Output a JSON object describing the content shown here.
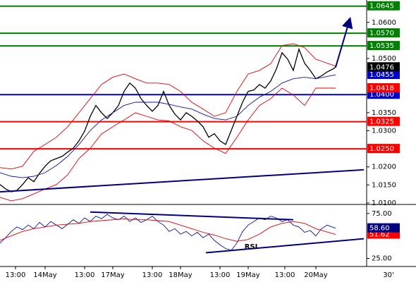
{
  "chart_data": [
    {
      "type": "line",
      "xlim": [
        0,
        130
      ],
      "ylim": [
        1.0096,
        1.0662
      ],
      "yticks": [
        {
          "value": 1.01,
          "label": "1.0100"
        },
        {
          "value": 1.015,
          "label": "1.0150"
        },
        {
          "value": 1.02,
          "label": "1.0200"
        },
        {
          "value": 1.03,
          "label": "1.0300"
        },
        {
          "value": 1.035,
          "label": "1.0350"
        },
        {
          "value": 1.05,
          "label": "1.0500"
        },
        {
          "value": 1.06,
          "label": "1.0600"
        }
      ],
      "series": [
        {
          "name": "Close",
          "color": "#000000",
          "width": 1.3,
          "x": [
            0,
            2,
            4,
            6,
            8,
            10,
            12,
            14,
            16,
            18,
            20,
            22,
            24,
            26,
            28,
            30,
            32,
            34,
            36,
            38,
            40,
            42,
            44,
            46,
            48,
            50,
            52,
            54,
            56,
            58,
            60,
            62,
            64,
            66,
            68,
            70,
            72,
            74,
            76,
            78,
            80,
            82,
            84,
            86,
            88,
            90,
            92,
            94,
            96,
            98,
            100,
            102,
            104,
            106,
            108,
            110,
            112,
            114,
            116,
            118,
            119
          ],
          "values": [
            1.0151,
            1.0139,
            1.0131,
            1.0135,
            1.0151,
            1.017,
            1.0159,
            1.0182,
            1.0202,
            1.0217,
            1.0223,
            1.0229,
            1.0241,
            1.0252,
            1.0272,
            1.0299,
            1.034,
            1.037,
            1.035,
            1.0334,
            1.035,
            1.037,
            1.0409,
            1.0432,
            1.0418,
            1.0389,
            1.037,
            1.0354,
            1.037,
            1.0409,
            1.037,
            1.0346,
            1.033,
            1.035,
            1.034,
            1.0327,
            1.0311,
            1.0282,
            1.0292,
            1.0272,
            1.0262,
            1.0301,
            1.034,
            1.0379,
            1.0409,
            1.0413,
            1.0428,
            1.0418,
            1.0438,
            1.0471,
            1.0516,
            1.0498,
            1.0467,
            1.0526,
            1.0487,
            1.0467,
            1.0444,
            1.0452,
            1.0463,
            1.0471,
            1.0476
          ]
        },
        {
          "name": "Upper band",
          "color": "#e00000",
          "width": 0.9,
          "x": [
            0,
            4,
            8,
            12,
            16,
            20,
            24,
            28,
            32,
            36,
            40,
            44,
            48,
            52,
            56,
            60,
            64,
            68,
            72,
            76,
            80,
            84,
            88,
            92,
            96,
            100,
            104,
            108,
            112,
            119
          ],
          "values": [
            1.0198,
            1.0194,
            1.0202,
            1.0243,
            1.0262,
            1.0282,
            1.0311,
            1.035,
            1.0389,
            1.0428,
            1.0448,
            1.0457,
            1.0444,
            1.0432,
            1.0432,
            1.0428,
            1.0409,
            1.0379,
            1.036,
            1.034,
            1.035,
            1.0409,
            1.0457,
            1.0467,
            1.0486,
            1.0536,
            1.0541,
            1.053,
            1.0498,
            1.0479
          ]
        },
        {
          "name": "Lower band",
          "color": "#e00000",
          "width": 0.9,
          "x": [
            0,
            4,
            8,
            12,
            16,
            20,
            24,
            28,
            32,
            36,
            40,
            44,
            48,
            52,
            56,
            60,
            64,
            68,
            72,
            76,
            80,
            84,
            88,
            92,
            96,
            100,
            104,
            108,
            112,
            119
          ],
          "values": [
            1.0116,
            1.0106,
            1.0112,
            1.0125,
            1.0139,
            1.0151,
            1.0178,
            1.0223,
            1.0252,
            1.0291,
            1.0311,
            1.033,
            1.035,
            1.034,
            1.033,
            1.0327,
            1.0311,
            1.0301,
            1.0272,
            1.0252,
            1.0237,
            1.0282,
            1.033,
            1.037,
            1.0389,
            1.0418,
            1.0399,
            1.037,
            1.0418,
            1.0418
          ]
        },
        {
          "name": "Moving average",
          "color": "#1010a0",
          "width": 0.9,
          "x": [
            0,
            4,
            8,
            12,
            16,
            20,
            24,
            28,
            32,
            36,
            40,
            44,
            48,
            52,
            56,
            60,
            64,
            68,
            72,
            76,
            80,
            84,
            88,
            92,
            96,
            100,
            104,
            108,
            112,
            119
          ],
          "values": [
            1.0184,
            1.0174,
            1.017,
            1.0174,
            1.0184,
            1.0204,
            1.0229,
            1.0262,
            1.0301,
            1.033,
            1.035,
            1.037,
            1.0379,
            1.0379,
            1.0379,
            1.0373,
            1.0366,
            1.036,
            1.0346,
            1.0334,
            1.033,
            1.034,
            1.037,
            1.0393,
            1.0409,
            1.0432,
            1.0444,
            1.0448,
            1.0444,
            1.0455
          ]
        }
      ],
      "levels": [
        {
          "value": 1.0645,
          "label": "1.0645",
          "color": "#008000"
        },
        {
          "value": 1.057,
          "label": "1.0570",
          "color": "#008000"
        },
        {
          "value": 1.0535,
          "label": "1.0535",
          "color": "#008000"
        },
        {
          "value": 1.04,
          "label": "1.0400",
          "color": "#0000cc"
        },
        {
          "value": 1.0325,
          "label": "1.0325",
          "color": "#ff0000"
        },
        {
          "value": 1.025,
          "label": "1.0250",
          "color": "#ff0000"
        }
      ],
      "price_labels": [
        {
          "value": 1.0418,
          "label": "1.0418",
          "color": "#ff0000"
        },
        {
          "value": 1.0455,
          "label": "1.0455",
          "color": "#0000cc"
        },
        {
          "value": 1.0476,
          "label": "1.0476",
          "color": "#000000"
        }
      ],
      "trendlines": [
        {
          "x": [
            0,
            129
          ],
          "y": [
            1.0131,
            1.0192
          ],
          "color": "#000080"
        },
        {
          "x": [
            119,
            124
          ],
          "y": [
            1.0476,
            1.0608
          ],
          "color": "#000080",
          "arrow": true
        }
      ]
    },
    {
      "type": "line",
      "xlim": [
        0,
        130
      ],
      "ylim": [
        16,
        85
      ],
      "yticks": [
        {
          "value": 25,
          "label": "25.00"
        },
        {
          "value": 75,
          "label": "75.00"
        }
      ],
      "xticks": [
        {
          "value": 5.5,
          "label": "13:00"
        },
        {
          "value": 16,
          "label": "14May"
        },
        {
          "value": 30,
          "label": "13:00"
        },
        {
          "value": 40,
          "label": "17May"
        },
        {
          "value": 54,
          "label": "13:00"
        },
        {
          "value": 64,
          "label": "18May"
        },
        {
          "value": 78,
          "label": "13:00"
        },
        {
          "value": 88,
          "label": "19May"
        },
        {
          "value": 101,
          "label": "13:00"
        },
        {
          "value": 112,
          "label": "20May"
        }
      ],
      "timeframe": "30'",
      "series": [
        {
          "name": "RSI",
          "color": "#1010a0",
          "width": 0.9,
          "x": [
            0,
            2,
            4,
            6,
            8,
            10,
            12,
            14,
            16,
            18,
            20,
            22,
            24,
            26,
            28,
            30,
            32,
            34,
            36,
            38,
            40,
            42,
            44,
            46,
            48,
            50,
            52,
            54,
            56,
            58,
            60,
            62,
            64,
            66,
            68,
            70,
            72,
            74,
            76,
            78,
            80,
            82,
            84,
            86,
            88,
            90,
            92,
            94,
            96,
            98,
            100,
            102,
            104,
            106,
            108,
            110,
            112,
            114,
            116,
            119
          ],
          "values": [
            42,
            48,
            55,
            60,
            57,
            62,
            58,
            65,
            60,
            66,
            62,
            58,
            63,
            68,
            64,
            70,
            66,
            72,
            69,
            74,
            70,
            68,
            72,
            66,
            70,
            65,
            68,
            72,
            66,
            62,
            55,
            58,
            52,
            55,
            50,
            54,
            48,
            52,
            45,
            40,
            36,
            34,
            42,
            55,
            62,
            66,
            70,
            68,
            72,
            70,
            66,
            68,
            62,
            60,
            54,
            56,
            50,
            58,
            62,
            58.6
          ]
        },
        {
          "name": "RSI average",
          "color": "#e00000",
          "width": 0.9,
          "x": [
            0,
            4,
            8,
            12,
            16,
            20,
            24,
            28,
            32,
            36,
            40,
            44,
            48,
            52,
            56,
            60,
            64,
            68,
            72,
            76,
            80,
            84,
            88,
            92,
            96,
            100,
            104,
            108,
            112,
            119
          ],
          "values": [
            45,
            50,
            55,
            58,
            60,
            62,
            63,
            64,
            66,
            67,
            68,
            69,
            68,
            68,
            67,
            66,
            62,
            58,
            54,
            51,
            47,
            44,
            46,
            52,
            60,
            64,
            66,
            64,
            58,
            51.62
          ]
        }
      ],
      "price_labels": [
        {
          "value": 51.62,
          "label": "51.62",
          "color": "#ff0000"
        },
        {
          "value": 58.6,
          "label": "58.60",
          "color": "#000080"
        }
      ],
      "trendlines": [
        {
          "x": [
            32,
            104
          ],
          "y": [
            76.6,
            68
          ],
          "color": "#000080"
        },
        {
          "x": [
            73,
            129
          ],
          "y": [
            31.25,
            46.9
          ],
          "color": "#000080"
        }
      ],
      "annotations": [
        {
          "text": "RSI",
          "x": 89,
          "y": 38
        }
      ]
    }
  ]
}
